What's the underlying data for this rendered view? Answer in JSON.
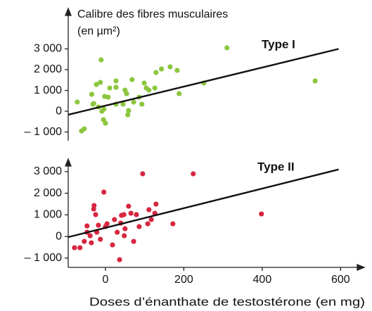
{
  "chart_data": [
    {
      "type": "scatter",
      "ylabel_lines": [
        "Calibre des fibres musculaires",
        "(en µm²)"
      ],
      "annotation": "Type I",
      "color": "#8cc63e",
      "xlim": [
        -95,
        655
      ],
      "ylim": [
        -1420,
        4880
      ],
      "yticks": [
        {
          "value": 3000,
          "label": "3 000"
        },
        {
          "value": 2000,
          "label": "2 000"
        },
        {
          "value": 1000,
          "label": "1 000"
        },
        0,
        {
          "value": -1000,
          "label": "– 1 000"
        }
      ],
      "x": [
        -72,
        -61,
        -54,
        -32,
        -35,
        -23,
        -30,
        -18,
        -13,
        -11,
        -9,
        -5,
        -4,
        0,
        -2,
        7,
        11,
        27,
        27,
        27,
        45,
        50,
        54,
        57,
        59,
        68,
        72,
        86,
        93,
        99,
        104,
        111,
        126,
        129,
        143,
        165,
        183,
        188,
        251,
        310,
        535
      ],
      "values": [
        441,
        -949,
        -847,
        339,
        814,
        1288,
        373,
        203,
        1390,
        2475,
        0,
        -407,
        100,
        -576,
        712,
        678,
        1119,
        339,
        1153,
        1458,
        339,
        1017,
        847,
        -170,
        34,
        1525,
        441,
        678,
        339,
        1356,
        1119,
        1017,
        1119,
        1864,
        2034,
        2136,
        1966,
        847,
        1356,
        3051,
        1458
      ],
      "trend": {
        "x": [
          -95,
          595
        ],
        "values": [
          -170,
          3000
        ]
      }
    },
    {
      "type": "scatter",
      "annotation": "Type II",
      "color": "#d7263f",
      "xlabel": "Doses d’énanthate de testostérone (en mg)",
      "xlim": [
        -95,
        655
      ],
      "xticks": [
        0,
        200,
        400,
        600
      ],
      "ylim": [
        -1430,
        3615
      ],
      "yticks": [
        {
          "value": 3000,
          "label": "3 000"
        },
        {
          "value": 2000,
          "label": "2 000"
        },
        {
          "value": 1000,
          "label": "1 000"
        },
        0,
        {
          "value": -1000,
          "label": "– 1 000"
        }
      ],
      "x": [
        -79,
        -65,
        -54,
        -47,
        -47,
        -39,
        -36,
        -30,
        -29,
        -25,
        -22,
        -18,
        -13,
        -4,
        0,
        4,
        18,
        23,
        30,
        39,
        41,
        36,
        47,
        48,
        50,
        59,
        65,
        72,
        79,
        86,
        95,
        108,
        111,
        117,
        126,
        129,
        172,
        224,
        398
      ],
      "values": [
        -521,
        -521,
        -228,
        195,
        489,
        33,
        -293,
        1270,
        1433,
        1010,
        195,
        521,
        -130,
        2052,
        456,
        586,
        -391,
        782,
        195,
        619,
        977,
        -1075,
        1010,
        33,
        358,
        1400,
        1075,
        -228,
        1010,
        456,
        2899,
        586,
        1238,
        782,
        1075,
        1498,
        586,
        2899,
        1042
      ],
      "trend": {
        "x": [
          -95,
          595
        ],
        "values": [
          -30,
          3100
        ]
      }
    }
  ]
}
